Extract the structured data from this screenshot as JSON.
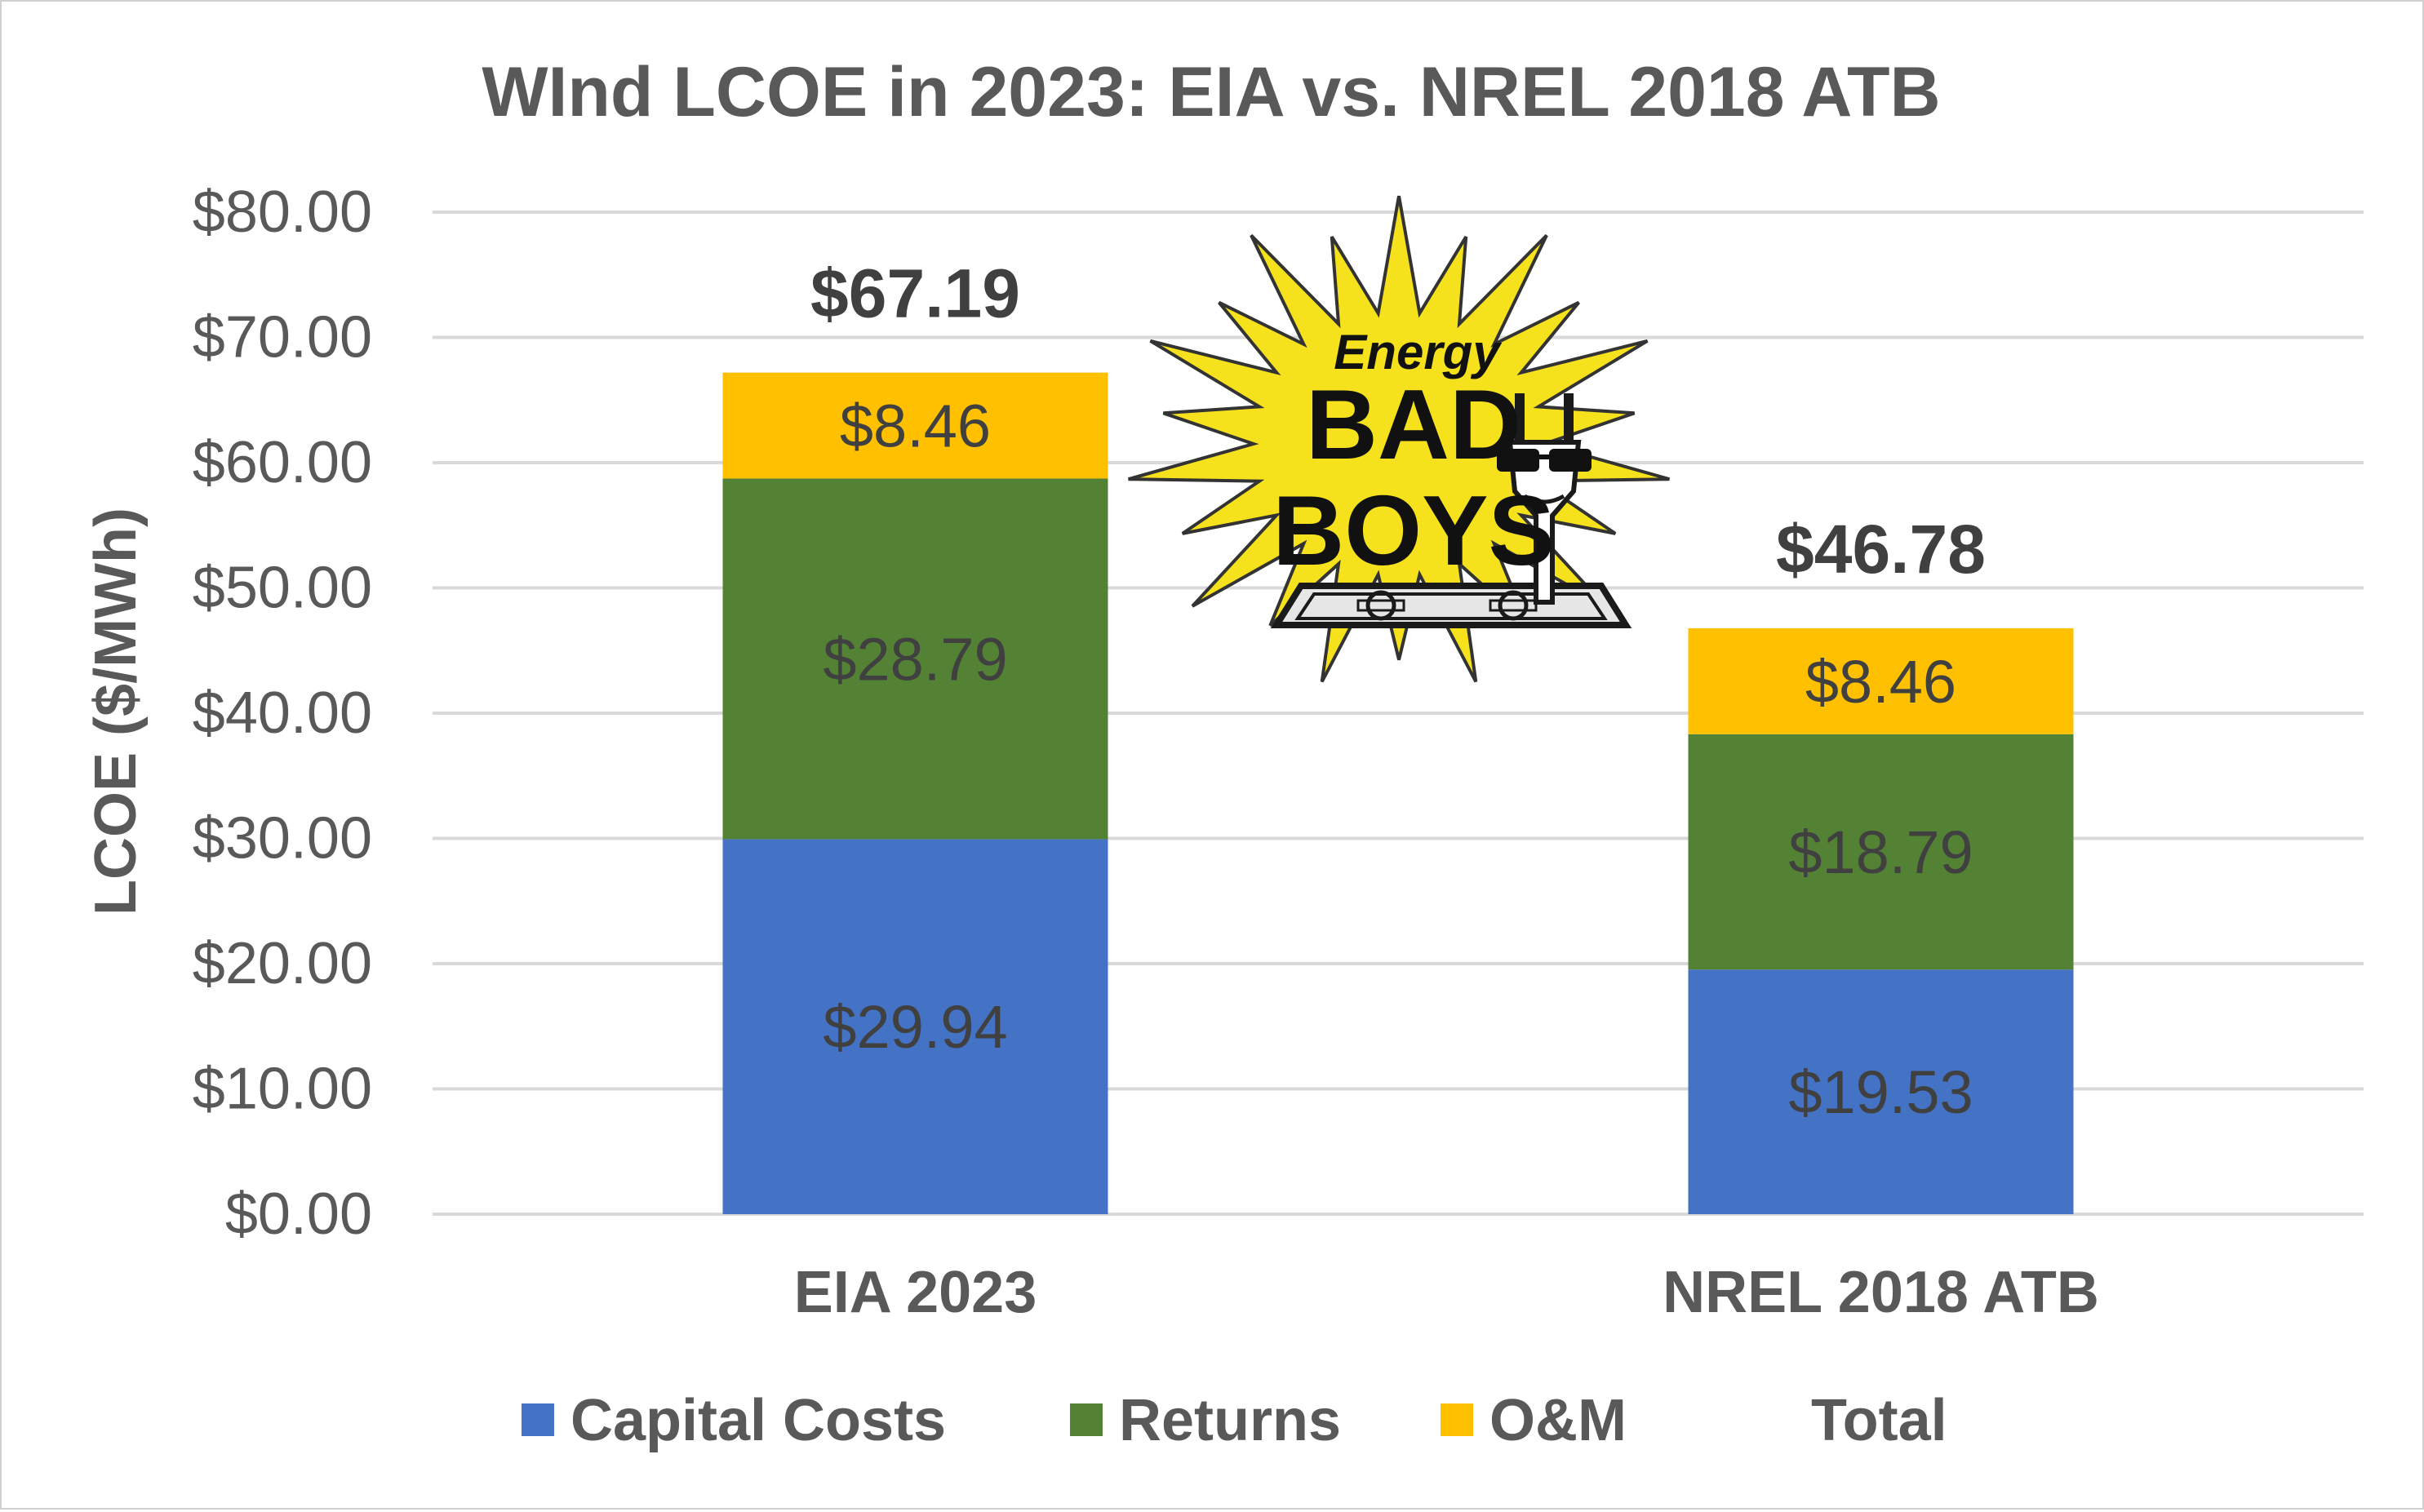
{
  "chart_data": {
    "type": "bar",
    "stacked": true,
    "title": "WInd LCOE in 2023: EIA vs. NREL 2018 ATB",
    "xlabel": "",
    "ylabel": "LCOE ($/MWh)",
    "ylim": [
      0,
      80
    ],
    "yticks": [
      0,
      10,
      20,
      30,
      40,
      50,
      60,
      70,
      80
    ],
    "ytick_labels": [
      "$0.00",
      "$10.00",
      "$20.00",
      "$30.00",
      "$40.00",
      "$50.00",
      "$60.00",
      "$70.00",
      "$80.00"
    ],
    "categories": [
      "EIA 2023",
      "NREL 2018 ATB"
    ],
    "series": [
      {
        "name": "Capital Costs",
        "color": "#4472C4",
        "values": [
          29.94,
          19.53
        ],
        "labels": [
          "$29.94",
          "$19.53"
        ]
      },
      {
        "name": "Returns",
        "color": "#548235",
        "values": [
          28.79,
          18.79
        ],
        "labels": [
          "$28.79",
          "$18.79"
        ]
      },
      {
        "name": "O&M",
        "color": "#FFC000",
        "values": [
          8.46,
          8.46
        ],
        "labels": [
          "$8.46",
          "$8.46"
        ]
      }
    ],
    "totals": {
      "name": "Total",
      "values": [
        67.19,
        46.78
      ],
      "labels": [
        "$67.19",
        "$46.78"
      ]
    },
    "grid": true,
    "legend": "bottom"
  },
  "logo": {
    "name": "energy-bad-boys-logo",
    "lines": [
      "Energy",
      "BAD",
      "BOYS"
    ]
  }
}
